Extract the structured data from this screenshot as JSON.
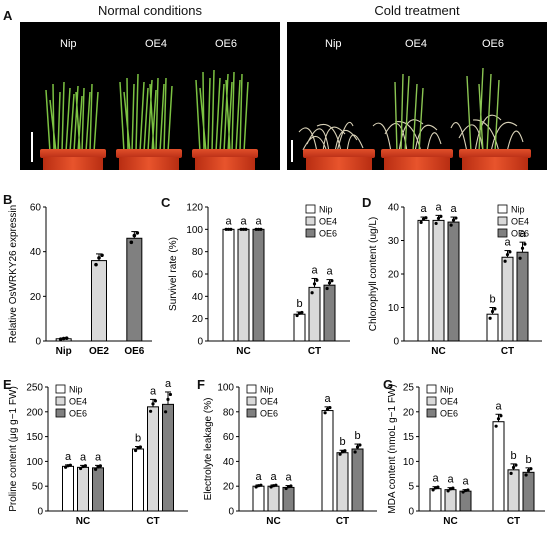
{
  "panel_a": {
    "letter": "A",
    "normal_title": "Normal conditions",
    "cold_title": "Cold treatment",
    "normal_labels": [
      "Nip",
      "OE4",
      "OE6"
    ],
    "cold_labels": [
      "Nip",
      "OE4",
      "OE6"
    ]
  },
  "chart_data": [
    {
      "id": "B",
      "type": "bar",
      "ylabel": "Relative OsWRKY26 expressin",
      "categories": [
        "Nip",
        "OE2",
        "OE6"
      ],
      "values": [
        1,
        36,
        46
      ],
      "errors": [
        0.3,
        3,
        3
      ],
      "ylim": [
        0,
        60
      ],
      "yticks": [
        0,
        20,
        40,
        60
      ],
      "colors": [
        "#ffffff",
        "#d9d9d9",
        "#808080"
      ]
    },
    {
      "id": "C",
      "type": "bar",
      "ylabel": "Survivel rate (%)",
      "groups": [
        "NC",
        "CT"
      ],
      "series": [
        {
          "name": "Nip",
          "values": [
            100,
            24
          ],
          "errors": [
            0,
            2
          ],
          "letters": [
            "a",
            "b"
          ]
        },
        {
          "name": "OE4",
          "values": [
            100,
            48
          ],
          "errors": [
            0,
            8
          ],
          "letters": [
            "a",
            "a"
          ]
        },
        {
          "name": "OE6",
          "values": [
            100,
            50
          ],
          "errors": [
            0,
            5
          ],
          "letters": [
            "a",
            "a"
          ]
        }
      ],
      "ylim": [
        0,
        120
      ],
      "yticks": [
        0,
        20,
        40,
        60,
        80,
        100,
        120
      ],
      "legend_position": "top-right",
      "colors": [
        "#ffffff",
        "#d9d9d9",
        "#808080"
      ]
    },
    {
      "id": "D",
      "type": "bar",
      "ylabel": "Chlorophyll content (ug/L)",
      "groups": [
        "NC",
        "CT"
      ],
      "series": [
        {
          "name": "Nip",
          "values": [
            36,
            8
          ],
          "errors": [
            1,
            2
          ],
          "letters": [
            "a",
            "b"
          ]
        },
        {
          "name": "OE4",
          "values": [
            36,
            25
          ],
          "errors": [
            1.5,
            2
          ],
          "letters": [
            "a",
            "a"
          ]
        },
        {
          "name": "OE6",
          "values": [
            35.5,
            26.5
          ],
          "errors": [
            1.5,
            3
          ],
          "letters": [
            "a",
            "a"
          ]
        }
      ],
      "ylim": [
        0,
        40
      ],
      "yticks": [
        0,
        10,
        20,
        30,
        40
      ],
      "legend_position": "top-right",
      "colors": [
        "#ffffff",
        "#d9d9d9",
        "#808080"
      ]
    },
    {
      "id": "E",
      "type": "bar",
      "ylabel": "Proline content (μg g−1 FW)",
      "groups": [
        "NC",
        "CT"
      ],
      "series": [
        {
          "name": "Nip",
          "values": [
            90,
            125
          ],
          "errors": [
            3,
            5
          ],
          "letters": [
            "a",
            "b"
          ]
        },
        {
          "name": "OE4",
          "values": [
            88,
            210
          ],
          "errors": [
            4,
            15
          ],
          "letters": [
            "a",
            "a"
          ]
        },
        {
          "name": "OE6",
          "values": [
            87,
            215
          ],
          "errors": [
            5,
            25
          ],
          "letters": [
            "a",
            "a"
          ]
        }
      ],
      "ylim": [
        0,
        250
      ],
      "yticks": [
        0,
        50,
        100,
        150,
        200,
        250
      ],
      "legend_position": "top-left",
      "colors": [
        "#ffffff",
        "#d9d9d9",
        "#808080"
      ]
    },
    {
      "id": "F",
      "type": "bar",
      "ylabel": "Electrolyte leakage (%)",
      "groups": [
        "NC",
        "CT"
      ],
      "series": [
        {
          "name": "Nip",
          "values": [
            20,
            81
          ],
          "errors": [
            1,
            3
          ],
          "letters": [
            "a",
            "a"
          ]
        },
        {
          "name": "OE4",
          "values": [
            20,
            47
          ],
          "errors": [
            1,
            2
          ],
          "letters": [
            "a",
            "b"
          ]
        },
        {
          "name": "OE6",
          "values": [
            19,
            50
          ],
          "errors": [
            1.5,
            4
          ],
          "letters": [
            "a",
            "b"
          ]
        }
      ],
      "ylim": [
        0,
        100
      ],
      "yticks": [
        0,
        20,
        40,
        60,
        80,
        100
      ],
      "legend_position": "top-left",
      "colors": [
        "#ffffff",
        "#d9d9d9",
        "#808080"
      ]
    },
    {
      "id": "G",
      "type": "bar",
      "ylabel": "MDA content (nmoL g−1 FW)",
      "groups": [
        "NC",
        "CT"
      ],
      "series": [
        {
          "name": "Nip",
          "values": [
            4.5,
            18
          ],
          "errors": [
            0.4,
            1.5
          ],
          "letters": [
            "a",
            "a"
          ]
        },
        {
          "name": "OE4",
          "values": [
            4.3,
            8.3
          ],
          "errors": [
            0.4,
            1.2
          ],
          "letters": [
            "a",
            "b"
          ]
        },
        {
          "name": "OE6",
          "values": [
            4.0,
            7.8
          ],
          "errors": [
            0.3,
            0.9
          ],
          "letters": [
            "a",
            "b"
          ]
        }
      ],
      "ylim": [
        0,
        25
      ],
      "yticks": [
        0,
        5,
        10,
        15,
        20,
        25
      ],
      "legend_position": "top-left",
      "colors": [
        "#ffffff",
        "#d9d9d9",
        "#808080"
      ]
    }
  ]
}
